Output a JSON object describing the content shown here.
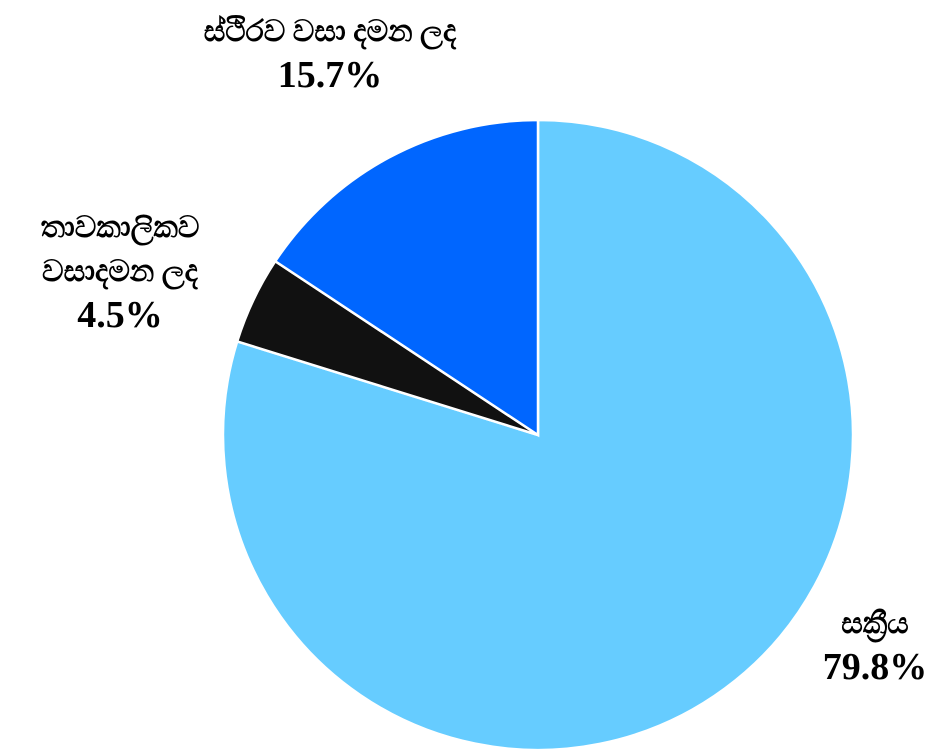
{
  "chart_data": {
    "type": "pie",
    "categories": [
      "සක්‍රීය",
      "තාවකාලිකව වසාදමන ලද",
      "ස්ථිරව වසා දමන ලද"
    ],
    "values": [
      79.8,
      4.5,
      15.7
    ],
    "value_labels": [
      "79.8%",
      "4.5%",
      "15.7%"
    ],
    "colors": [
      "#66ccff",
      "#111111",
      "#0066ff"
    ]
  }
}
